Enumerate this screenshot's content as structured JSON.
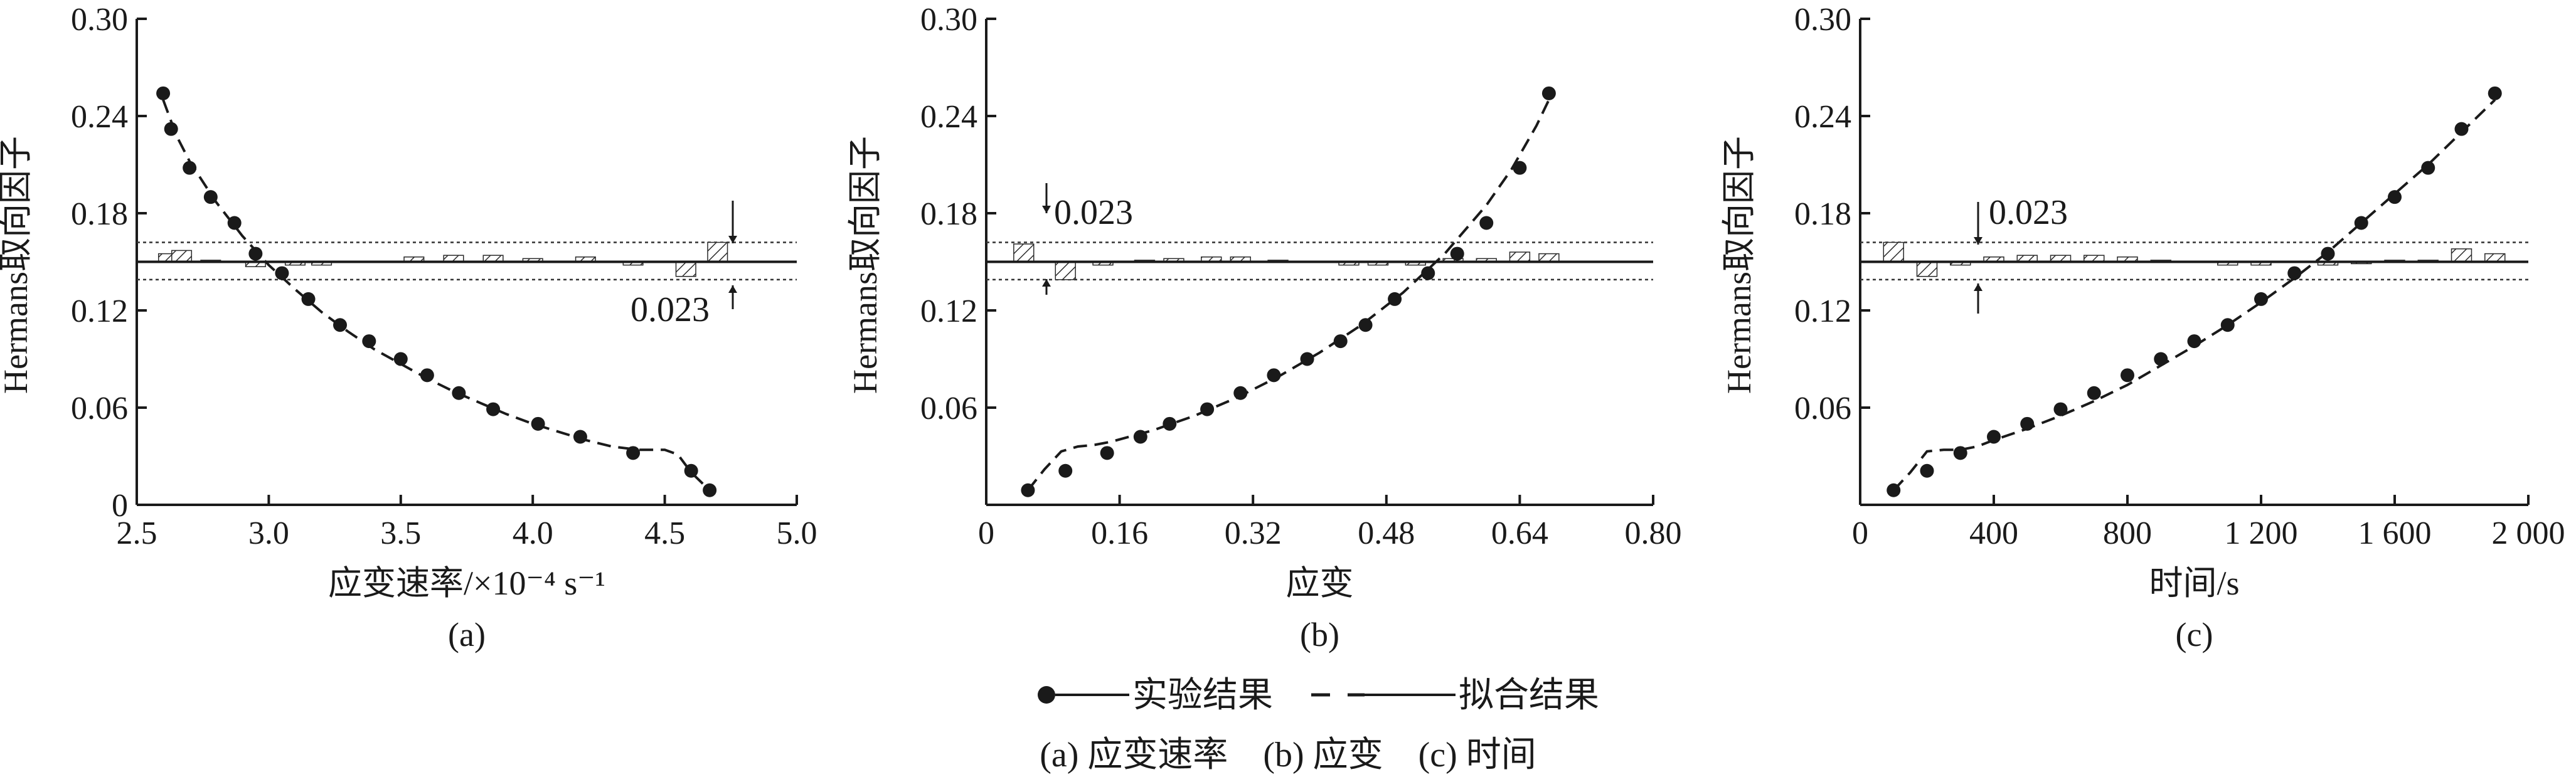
{
  "chart_data": [
    {
      "type": "scatter",
      "panel_label": "(a)",
      "xlabel": "应变速率/×10⁻⁴ s⁻¹",
      "ylabel": "Hermans取向因子",
      "xlim": [
        2.5,
        5.0
      ],
      "ylim": [
        0,
        0.3
      ],
      "x_ticks": [
        2.5,
        3.0,
        3.5,
        4.0,
        4.5,
        5.0
      ],
      "x_tick_labels": [
        "2.5",
        "3.0",
        "3.5",
        "4.0",
        "4.5",
        "5.0"
      ],
      "y_ticks": [
        0,
        0.06,
        0.12,
        0.18,
        0.24,
        0.3
      ],
      "y_tick_labels": [
        "0",
        "0.06",
        "0.12",
        "0.18",
        "0.24",
        "0.30"
      ],
      "mean_line": 0.15,
      "band": [
        0.139,
        0.162
      ],
      "band_annotation": "0.023",
      "series": [
        {
          "name": "实验结果",
          "style": "markers",
          "x": [
            2.6,
            2.63,
            2.7,
            2.78,
            2.87,
            2.95,
            3.05,
            3.15,
            3.27,
            3.38,
            3.5,
            3.6,
            3.72,
            3.85,
            4.02,
            4.18,
            4.38,
            4.6,
            4.67
          ],
          "y": [
            0.254,
            0.232,
            0.208,
            0.19,
            0.174,
            0.155,
            0.143,
            0.127,
            0.111,
            0.101,
            0.09,
            0.08,
            0.069,
            0.059,
            0.05,
            0.042,
            0.032,
            0.021,
            0.009
          ]
        },
        {
          "name": "拟合结果",
          "style": "dashed",
          "x": [
            2.6,
            2.65,
            2.7,
            2.8,
            2.9,
            3.0,
            3.1,
            3.2,
            3.3,
            3.4,
            3.5,
            3.6,
            3.7,
            3.8,
            3.9,
            4.0,
            4.1,
            4.2,
            4.3,
            4.4,
            4.5,
            4.55,
            4.6,
            4.67
          ],
          "y": [
            0.25,
            0.228,
            0.212,
            0.187,
            0.166,
            0.148,
            0.133,
            0.119,
            0.107,
            0.096,
            0.087,
            0.078,
            0.07,
            0.063,
            0.056,
            0.05,
            0.045,
            0.04,
            0.036,
            0.034,
            0.034,
            0.031,
            0.02,
            0.009
          ]
        }
      ],
      "bars": [
        {
          "x": 2.62,
          "y": 0.155
        },
        {
          "x": 2.67,
          "y": 0.157
        },
        {
          "x": 2.78,
          "y": 0.151
        },
        {
          "x": 2.95,
          "y": 0.147
        },
        {
          "x": 3.1,
          "y": 0.148
        },
        {
          "x": 3.2,
          "y": 0.148
        },
        {
          "x": 3.55,
          "y": 0.153
        },
        {
          "x": 3.7,
          "y": 0.154
        },
        {
          "x": 3.85,
          "y": 0.154
        },
        {
          "x": 4.0,
          "y": 0.152
        },
        {
          "x": 4.2,
          "y": 0.153
        },
        {
          "x": 4.38,
          "y": 0.148
        },
        {
          "x": 4.58,
          "y": 0.141
        },
        {
          "x": 4.7,
          "y": 0.162
        }
      ]
    },
    {
      "type": "scatter",
      "panel_label": "(b)",
      "xlabel": "应变",
      "ylabel": "Hermans取向因子",
      "xlim": [
        0,
        0.8
      ],
      "ylim": [
        0,
        0.3
      ],
      "x_ticks": [
        0,
        0.16,
        0.32,
        0.48,
        0.64,
        0.8
      ],
      "x_tick_labels": [
        "0",
        "0.16",
        "0.32",
        "0.48",
        "0.64",
        "0.80"
      ],
      "y_ticks": [
        0,
        0.06,
        0.12,
        0.18,
        0.24,
        0.3
      ],
      "y_tick_labels": [
        "",
        "0.06",
        "0.12",
        "0.18",
        "0.24",
        "0.30"
      ],
      "mean_line": 0.15,
      "band": [
        0.139,
        0.162
      ],
      "band_annotation": "0.023",
      "series": [
        {
          "name": "实验结果",
          "style": "markers",
          "x": [
            0.05,
            0.095,
            0.145,
            0.185,
            0.22,
            0.265,
            0.305,
            0.345,
            0.385,
            0.425,
            0.455,
            0.49,
            0.53,
            0.565,
            0.6,
            0.64,
            0.675
          ],
          "y": [
            0.009,
            0.021,
            0.032,
            0.042,
            0.05,
            0.059,
            0.069,
            0.08,
            0.09,
            0.101,
            0.111,
            0.127,
            0.143,
            0.155,
            0.174,
            0.208,
            0.254
          ]
        },
        {
          "name": "拟合结果",
          "style": "dashed",
          "x": [
            0.05,
            0.07,
            0.09,
            0.11,
            0.13,
            0.15,
            0.2,
            0.25,
            0.3,
            0.35,
            0.4,
            0.45,
            0.5,
            0.55,
            0.6,
            0.63,
            0.66,
            0.675
          ],
          "y": [
            0.009,
            0.022,
            0.033,
            0.036,
            0.037,
            0.039,
            0.046,
            0.055,
            0.066,
            0.079,
            0.094,
            0.111,
            0.131,
            0.155,
            0.185,
            0.207,
            0.234,
            0.25
          ]
        }
      ],
      "bars": [
        {
          "x": 0.045,
          "y": 0.161
        },
        {
          "x": 0.095,
          "y": 0.139
        },
        {
          "x": 0.14,
          "y": 0.148
        },
        {
          "x": 0.19,
          "y": 0.151
        },
        {
          "x": 0.225,
          "y": 0.152
        },
        {
          "x": 0.27,
          "y": 0.153
        },
        {
          "x": 0.305,
          "y": 0.153
        },
        {
          "x": 0.35,
          "y": 0.151
        },
        {
          "x": 0.435,
          "y": 0.148
        },
        {
          "x": 0.47,
          "y": 0.148
        },
        {
          "x": 0.515,
          "y": 0.148
        },
        {
          "x": 0.56,
          "y": 0.152
        },
        {
          "x": 0.6,
          "y": 0.152
        },
        {
          "x": 0.64,
          "y": 0.156
        },
        {
          "x": 0.675,
          "y": 0.155
        }
      ]
    },
    {
      "type": "scatter",
      "panel_label": "(c)",
      "xlabel": "时间/s",
      "ylabel": "Hermans取向因子",
      "xlim": [
        0,
        2000
      ],
      "ylim": [
        0,
        0.3
      ],
      "x_ticks": [
        0,
        400,
        800,
        1200,
        1600,
        2000
      ],
      "x_tick_labels": [
        "0",
        "400",
        "800",
        "1 200",
        "1 600",
        "2 000"
      ],
      "y_ticks": [
        0,
        0.06,
        0.12,
        0.18,
        0.24,
        0.3
      ],
      "y_tick_labels": [
        "",
        "0.06",
        "0.12",
        "0.18",
        "0.24",
        "0.30"
      ],
      "mean_line": 0.15,
      "band": [
        0.139,
        0.162
      ],
      "band_annotation": "0.023",
      "series": [
        {
          "name": "实验结果",
          "style": "markers",
          "x": [
            100,
            200,
            300,
            400,
            500,
            600,
            700,
            800,
            900,
            1000,
            1100,
            1200,
            1300,
            1400,
            1500,
            1600,
            1700,
            1800,
            1900
          ],
          "y": [
            0.009,
            0.021,
            0.032,
            0.042,
            0.05,
            0.059,
            0.069,
            0.08,
            0.09,
            0.101,
            0.111,
            0.127,
            0.143,
            0.155,
            0.174,
            0.19,
            0.208,
            0.232,
            0.254
          ]
        },
        {
          "name": "拟合结果",
          "style": "dashed",
          "x": [
            100,
            150,
            200,
            250,
            300,
            350,
            400,
            500,
            600,
            700,
            800,
            900,
            1000,
            1100,
            1200,
            1300,
            1400,
            1500,
            1600,
            1700,
            1800,
            1900
          ],
          "y": [
            0.009,
            0.02,
            0.033,
            0.034,
            0.034,
            0.036,
            0.04,
            0.047,
            0.055,
            0.064,
            0.074,
            0.086,
            0.098,
            0.111,
            0.125,
            0.14,
            0.156,
            0.174,
            0.192,
            0.21,
            0.23,
            0.25
          ]
        }
      ],
      "bars": [
        {
          "x": 100,
          "y": 0.162
        },
        {
          "x": 200,
          "y": 0.141
        },
        {
          "x": 300,
          "y": 0.148
        },
        {
          "x": 400,
          "y": 0.153
        },
        {
          "x": 500,
          "y": 0.154
        },
        {
          "x": 600,
          "y": 0.154
        },
        {
          "x": 700,
          "y": 0.154
        },
        {
          "x": 800,
          "y": 0.153
        },
        {
          "x": 900,
          "y": 0.151
        },
        {
          "x": 1100,
          "y": 0.148
        },
        {
          "x": 1200,
          "y": 0.148
        },
        {
          "x": 1400,
          "y": 0.148
        },
        {
          "x": 1500,
          "y": 0.149
        },
        {
          "x": 1600,
          "y": 0.151
        },
        {
          "x": 1700,
          "y": 0.151
        },
        {
          "x": 1800,
          "y": 0.158
        },
        {
          "x": 1900,
          "y": 0.155
        }
      ]
    }
  ],
  "legend": {
    "experimental": "实验结果",
    "fitted": "拟合结果",
    "caption_line": "(a) 应变速率    (b) 应变    (c) 时间"
  }
}
